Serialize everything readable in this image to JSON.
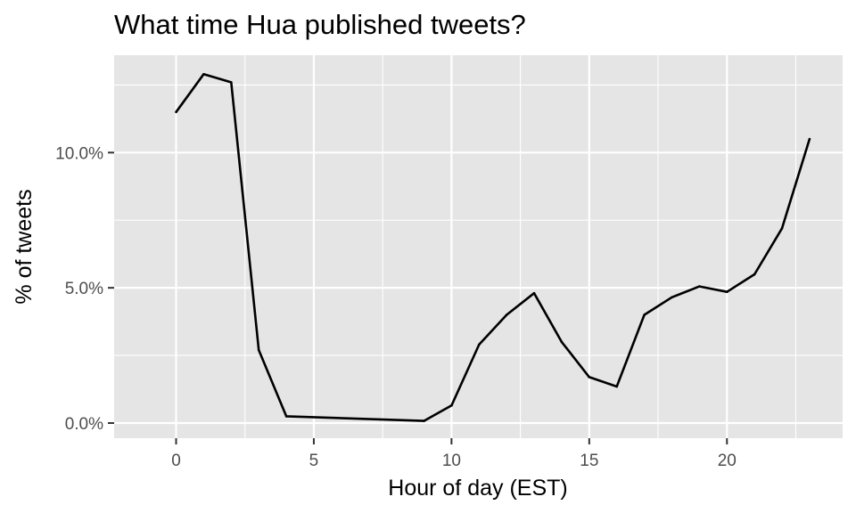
{
  "chart_data": {
    "type": "line",
    "title": "What time Hua published tweets?",
    "xlabel": "Hour of day (EST)",
    "ylabel": "% of tweets",
    "xlim": [
      -2.25,
      24.2
    ],
    "ylim": [
      -0.56,
      13.6
    ],
    "x_ticks": [
      0,
      5,
      10,
      15,
      20
    ],
    "x_tick_labels": [
      "0",
      "5",
      "10",
      "15",
      "20"
    ],
    "x_minor_ticks": [
      2.5,
      7.5,
      12.5,
      17.5,
      22.5
    ],
    "y_ticks": [
      0,
      5,
      10
    ],
    "y_tick_labels": [
      "0.0%",
      "5.0%",
      "10.0%"
    ],
    "y_minor_ticks": [
      2.5,
      7.5,
      12.5
    ],
    "grid": true,
    "colors": {
      "panel": "#e5e5e5",
      "grid": "#ffffff",
      "line": "#000000",
      "tick_text": "#4d4d4d",
      "tick_mark": "#333333"
    },
    "series": [
      {
        "x": [
          0,
          1,
          2,
          3,
          4,
          9,
          10,
          11,
          12,
          13,
          14,
          15,
          16,
          17,
          18,
          19,
          20,
          21,
          22,
          23
        ],
        "values": [
          11.5,
          12.9,
          12.6,
          2.7,
          0.25,
          0.08,
          0.65,
          2.9,
          4.0,
          4.8,
          3.0,
          1.7,
          1.35,
          4.0,
          4.65,
          5.05,
          4.85,
          5.5,
          7.2,
          10.5
        ]
      }
    ]
  }
}
